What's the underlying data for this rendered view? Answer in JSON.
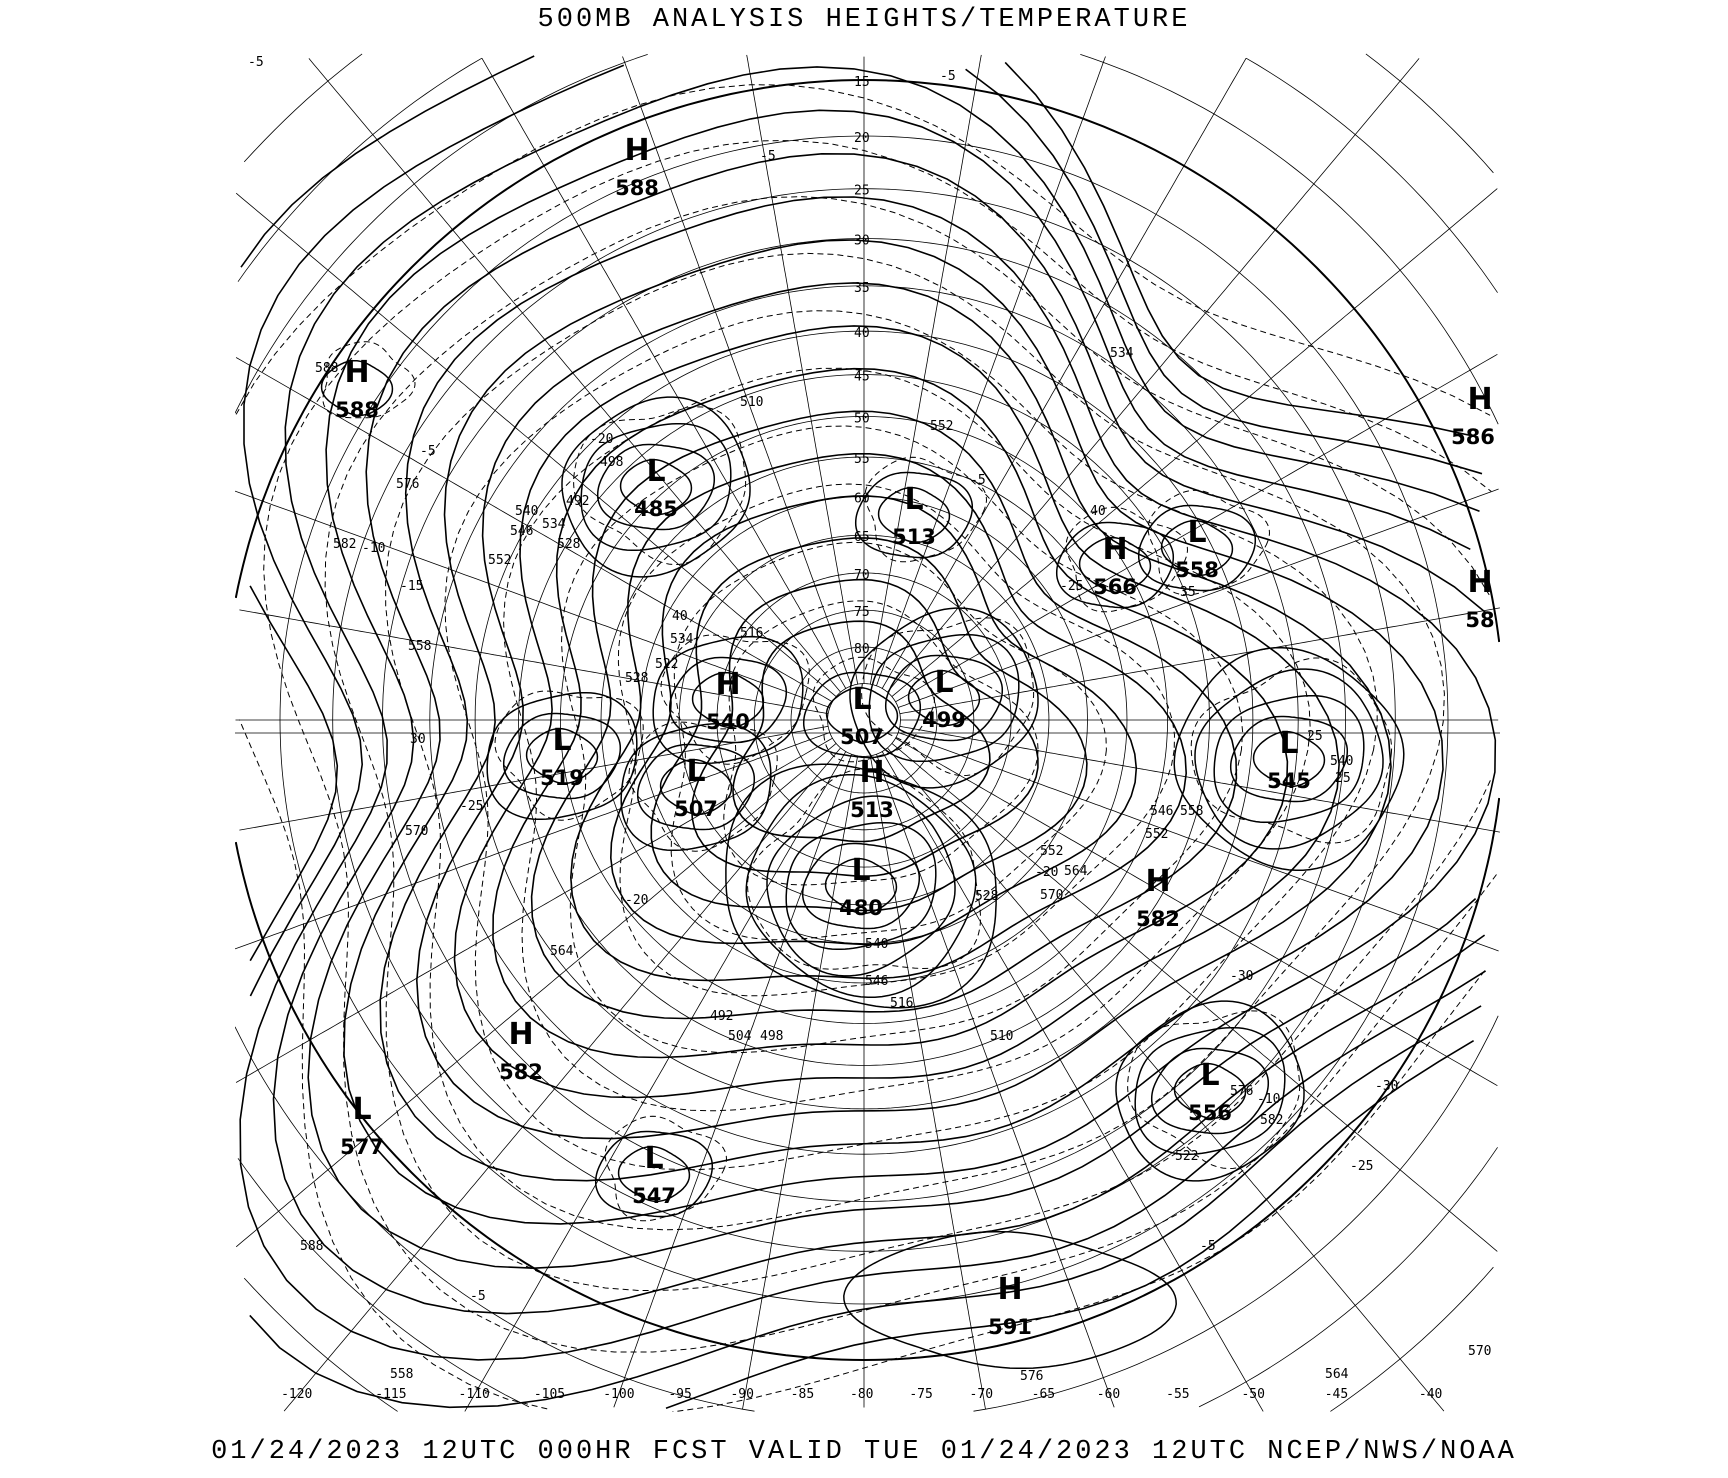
{
  "header": {
    "title": "500MB ANALYSIS  HEIGHTS/TEMPERATURE"
  },
  "footer": {
    "valid": "01/24/2023 12UTC 000HR FCST VALID TUE 01/24/2023 12UTC  NCEP/NWS/NOAA"
  },
  "map": {
    "projection": "polar-stereographic",
    "colors": {
      "lines": "#000000",
      "background": "#ffffff"
    },
    "latitude_labels": [
      "15",
      "20",
      "25",
      "30",
      "35",
      "40",
      "45",
      "50",
      "55",
      "60",
      "65",
      "70",
      "75",
      "80"
    ],
    "longitude_labels": [
      "-120",
      "-115",
      "-110",
      "-105",
      "-100",
      "-95",
      "-90",
      "-85",
      "-80",
      "-75",
      "-70",
      "-65",
      "-60",
      "-55",
      "-50",
      "-45",
      "-40"
    ],
    "centers": [
      {
        "type": "H",
        "value": "588"
      },
      {
        "type": "H",
        "value": "588"
      },
      {
        "type": "H",
        "value": "586"
      },
      {
        "type": "H",
        "value": "58"
      },
      {
        "type": "L",
        "value": "485"
      },
      {
        "type": "L",
        "value": "513"
      },
      {
        "type": "H",
        "value": "566"
      },
      {
        "type": "L",
        "value": "558"
      },
      {
        "type": "H",
        "value": "540"
      },
      {
        "type": "L",
        "value": "507"
      },
      {
        "type": "L",
        "value": "499"
      },
      {
        "type": "L",
        "value": "519"
      },
      {
        "type": "L",
        "value": "507"
      },
      {
        "type": "H",
        "value": "513"
      },
      {
        "type": "L",
        "value": "545"
      },
      {
        "type": "L",
        "value": "480"
      },
      {
        "type": "H",
        "value": "582"
      },
      {
        "type": "H",
        "value": "582"
      },
      {
        "type": "L",
        "value": "577"
      },
      {
        "type": "L",
        "value": "556"
      },
      {
        "type": "L",
        "value": "547"
      },
      {
        "type": "H",
        "value": "591"
      }
    ],
    "contour_labels": [
      "-5",
      "-5",
      "588",
      "576",
      "-5",
      "582",
      "-10",
      "-15",
      "540",
      "546",
      "534",
      "528",
      "552",
      "558",
      "30",
      "-25",
      "570",
      "-20",
      "564",
      "-20",
      "498",
      "492",
      "510",
      "40",
      "516",
      "522",
      "528",
      "534",
      "552",
      "-5",
      "40",
      "35",
      "-25",
      "25",
      "540",
      "25",
      "552",
      "546",
      "558",
      "552",
      "-20",
      "570",
      "564",
      "528",
      "534",
      "540",
      "546",
      "516",
      "492",
      "498",
      "504",
      "510",
      "-30",
      "-30",
      "-25",
      "522",
      "576",
      "-10",
      "582",
      "576",
      "558",
      "564",
      "570",
      "588",
      "-5",
      "-5",
      "-5"
    ]
  }
}
